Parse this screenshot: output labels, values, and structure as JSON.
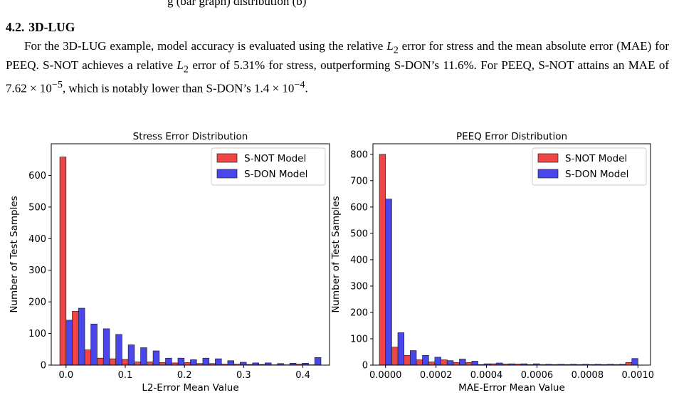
{
  "caption_fragment": "g                              (bar graph)    distribution (b)",
  "section": {
    "number": "4.2.",
    "title": "3D-LUG"
  },
  "paragraph": {
    "l1a": "For the 3D-LUG example, model accuracy is evaluated using the relative ",
    "l1b": " error for stress and the mean absolute",
    "l2a": "error (MAE) for PEEQ. S-NOT achieves a relative ",
    "l2b": " error of 5.31% for stress, outperforming S-DON’s 11.6%. For",
    "l3a": "PEEQ, S-NOT attains an MAE of 7.62 × 10",
    "l3exp": "−5",
    "l3b": ", which is notably lower than S-DON’s 1.4 × 10",
    "l3exp2": "−4",
    "l3c": ".",
    "math_L": "L",
    "math_sub": "2"
  },
  "colors": {
    "s_not": "#f04545",
    "s_don": "#4a46ee",
    "edge": "#222222"
  },
  "chart_data": [
    {
      "type": "bar",
      "title": "Stress Error Distribution",
      "xlabel": "L2-Error Mean Value",
      "ylabel": "Number of Test Samples",
      "xlim": [
        -0.025,
        0.445
      ],
      "ylim": [
        0,
        700
      ],
      "xticks": [
        "0.0",
        "0.1",
        "0.2",
        "0.3",
        "0.4"
      ],
      "xtick_values": [
        0.0,
        0.1,
        0.2,
        0.3,
        0.4
      ],
      "yticks": [
        "0",
        "100",
        "200",
        "300",
        "400",
        "500",
        "600"
      ],
      "ytick_values": [
        0,
        100,
        200,
        300,
        400,
        500,
        600
      ],
      "legend_position": "top-right",
      "bin_width": 0.021,
      "bin_centers": [
        0.0,
        0.021,
        0.042,
        0.063,
        0.084,
        0.105,
        0.126,
        0.147,
        0.168,
        0.189,
        0.21,
        0.231,
        0.252,
        0.273,
        0.294,
        0.315,
        0.336,
        0.357,
        0.378,
        0.399,
        0.42
      ],
      "series": [
        {
          "name": "S-NOT Model",
          "values": [
            658,
            170,
            48,
            22,
            20,
            18,
            10,
            10,
            8,
            7,
            8,
            5,
            5,
            3,
            3,
            2,
            2,
            1,
            1,
            3,
            1
          ]
        },
        {
          "name": "S-DON Model",
          "values": [
            142,
            180,
            130,
            115,
            97,
            64,
            55,
            45,
            22,
            22,
            17,
            22,
            20,
            14,
            9,
            7,
            7,
            5,
            6,
            6,
            24
          ]
        }
      ]
    },
    {
      "type": "bar",
      "title": "PEEQ Error Distribution",
      "xlabel": "MAE-Error Mean Value",
      "ylabel": "Number of Test Samples",
      "xlim": [
        -5e-05,
        0.00105
      ],
      "ylim": [
        0,
        840
      ],
      "xticks": [
        "0.0000",
        "0.0002",
        "0.0004",
        "0.0006",
        "0.0008",
        "0.0010"
      ],
      "xtick_values": [
        0.0,
        0.0002,
        0.0004,
        0.0006,
        0.0008,
        0.001
      ],
      "yticks": [
        "0",
        "100",
        "200",
        "300",
        "400",
        "500",
        "600",
        "700",
        "800"
      ],
      "ytick_values": [
        0,
        100,
        200,
        300,
        400,
        500,
        600,
        700,
        800
      ],
      "legend_position": "top-right",
      "bin_width": 4.88e-05,
      "bin_centers": [
        0.0,
        4.88e-05,
        9.76e-05,
        0.0001464,
        0.0001952,
        0.000244,
        0.0002928,
        0.0003416,
        0.0003904,
        0.0004392,
        0.000488,
        0.0005368,
        0.0005856,
        0.0006344,
        0.0006832,
        0.000732,
        0.0007808,
        0.0008296,
        0.0008784,
        0.0009272,
        0.000976
      ],
      "series": [
        {
          "name": "S-NOT Model",
          "values": [
            800,
            68,
            37,
            20,
            12,
            20,
            10,
            10,
            2,
            5,
            4,
            4,
            2,
            2,
            2,
            2,
            2,
            2,
            2,
            2,
            10
          ]
        },
        {
          "name": "S-DON Model",
          "values": [
            630,
            123,
            55,
            37,
            30,
            17,
            23,
            15,
            5,
            8,
            5,
            5,
            5,
            3,
            3,
            3,
            3,
            3,
            3,
            3,
            25
          ]
        }
      ]
    }
  ]
}
